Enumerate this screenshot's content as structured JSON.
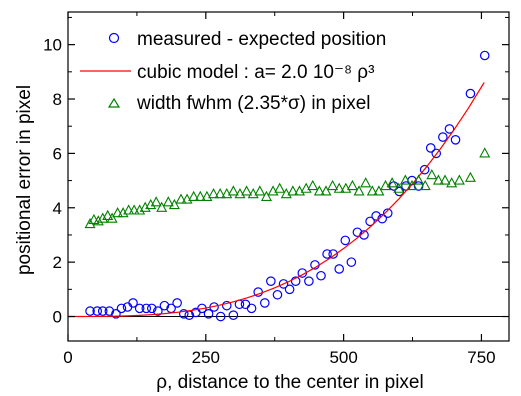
{
  "chart_data": {
    "type": "scatter",
    "xlabel": "ρ, distance to the center in pixel",
    "ylabel": "positional error in pixel",
    "xlim": [
      0,
      800
    ],
    "ylim": [
      -0.9,
      11.2
    ],
    "x_ticks": [
      0,
      250,
      500,
      750
    ],
    "x_tick_labels": [
      "0",
      "250",
      "500",
      "750"
    ],
    "y_ticks": [
      0,
      2,
      4,
      6,
      8,
      10
    ],
    "y_tick_labels": [
      "0",
      "2",
      "4",
      "6",
      "8",
      "10"
    ],
    "grid": false,
    "legend_position": "top-left",
    "zero_line": true,
    "series": [
      {
        "name": "measured - expected position",
        "marker": "circle",
        "color": "#0000ff",
        "x": [
          40,
          53,
          63,
          75,
          87,
          97,
          108,
          118,
          130,
          142,
          152,
          163,
          175,
          187,
          198,
          210,
          220,
          232,
          243,
          255,
          265,
          277,
          288,
          300,
          311,
          322,
          333,
          345,
          357,
          368,
          380,
          391,
          402,
          413,
          425,
          437,
          448,
          459,
          470,
          481,
          492,
          503,
          514,
          525,
          537,
          548,
          559,
          570,
          580,
          591,
          601,
          613,
          624,
          636,
          647,
          658,
          668,
          680,
          692,
          703,
          730,
          756
        ],
        "y": [
          0.2,
          0.2,
          0.2,
          0.2,
          0.1,
          0.3,
          0.35,
          0.5,
          0.3,
          0.3,
          0.3,
          0.2,
          0.4,
          0.3,
          0.5,
          0.1,
          0.05,
          0.15,
          0.3,
          0.1,
          0.35,
          0.0,
          0.4,
          0.05,
          0.45,
          0.45,
          0.3,
          0.9,
          0.5,
          1.3,
          0.8,
          1.2,
          1.0,
          1.3,
          1.6,
          1.3,
          1.9,
          1.5,
          2.3,
          2.3,
          1.75,
          2.8,
          2.0,
          3.1,
          3.0,
          3.5,
          3.7,
          3.6,
          3.8,
          4.8,
          4.6,
          4.8,
          5.0,
          4.8,
          5.4,
          6.2,
          6.0,
          6.6,
          6.9,
          6.5,
          8.2,
          9.6
        ]
      },
      {
        "name": "cubic model : a= 2.0 10⁻⁸ ρ³",
        "marker": "line",
        "color": "#ff0000",
        "x": [
          0,
          25,
          50,
          75,
          100,
          125,
          150,
          175,
          200,
          225,
          250,
          275,
          300,
          325,
          350,
          375,
          400,
          425,
          450,
          475,
          500,
          525,
          550,
          575,
          600,
          625,
          650,
          675,
          700,
          725,
          755
        ],
        "y": [
          0.0,
          0.0003,
          0.0025,
          0.0084,
          0.02,
          0.039,
          0.0675,
          0.107,
          0.16,
          0.228,
          0.3125,
          0.416,
          0.54,
          0.687,
          0.8575,
          1.055,
          1.28,
          1.535,
          1.8225,
          2.143,
          2.5,
          2.894,
          3.3275,
          3.802,
          4.32,
          4.883,
          5.4925,
          6.151,
          6.86,
          7.622,
          8.607
        ]
      },
      {
        "name": "width fwhm (2.35*σ) in pixel",
        "marker": "triangle",
        "color": "#008000",
        "x": [
          40,
          47,
          55,
          63,
          72,
          80,
          90,
          100,
          110,
          120,
          130,
          140,
          150,
          160,
          170,
          182,
          193,
          205,
          216,
          228,
          240,
          252,
          264,
          276,
          288,
          300,
          312,
          324,
          336,
          348,
          360,
          372,
          384,
          396,
          408,
          420,
          432,
          444,
          456,
          468,
          480,
          492,
          504,
          516,
          528,
          540,
          552,
          564,
          576,
          588,
          600,
          612,
          624,
          636,
          648,
          660,
          672,
          684,
          696,
          710,
          730,
          756
        ],
        "y": [
          3.4,
          3.55,
          3.5,
          3.6,
          3.7,
          3.6,
          3.8,
          3.8,
          3.9,
          3.9,
          3.9,
          4.0,
          4.1,
          4.2,
          4.0,
          4.2,
          4.1,
          4.3,
          4.3,
          4.4,
          4.4,
          4.4,
          4.5,
          4.5,
          4.5,
          4.6,
          4.5,
          4.6,
          4.5,
          4.6,
          4.4,
          4.6,
          4.7,
          4.5,
          4.6,
          4.6,
          4.7,
          4.8,
          4.6,
          4.6,
          4.8,
          4.7,
          4.7,
          4.8,
          4.6,
          4.9,
          4.6,
          4.6,
          4.8,
          4.9,
          4.7,
          5.0,
          4.8,
          5.0,
          4.8,
          5.2,
          5.0,
          5.0,
          4.9,
          5.0,
          5.1,
          6.0
        ]
      }
    ]
  }
}
